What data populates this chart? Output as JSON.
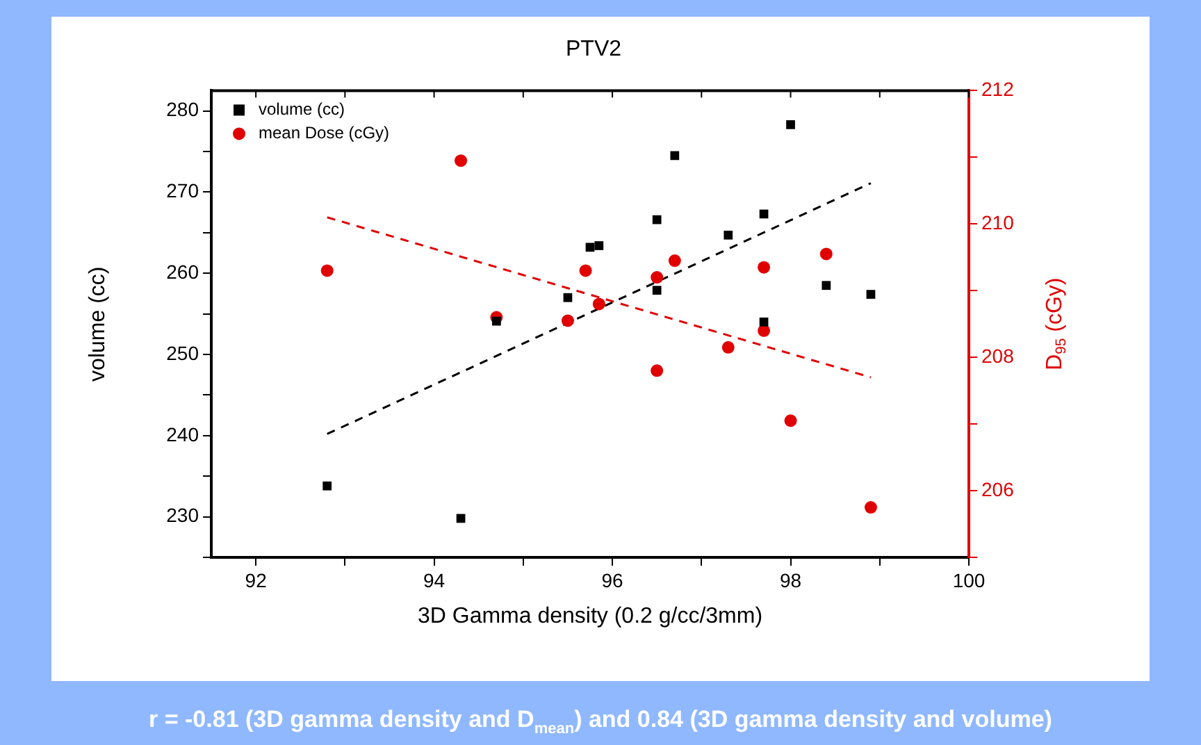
{
  "chart_data": {
    "type": "scatter",
    "title": "PTV2",
    "xlabel": "3D Gamma density (0.2 g/cc/3mm)",
    "ylabel": "volume (cc)",
    "y2label": "D$_{95}$ (cGy)",
    "xlim": [
      91.5,
      100
    ],
    "xticks": [
      92,
      {
        "value": 93,
        "label": null
      },
      94,
      {
        "value": 95,
        "label": null
      },
      96,
      {
        "value": 97,
        "label": null
      },
      98,
      {
        "value": 99,
        "label": null
      },
      100
    ],
    "ylim": [
      225,
      282.5
    ],
    "yticks": [
      {
        "value": 225,
        "label": null
      },
      230,
      {
        "value": 235,
        "label": null
      },
      240,
      {
        "value": 245,
        "label": null
      },
      250,
      {
        "value": 255,
        "label": null
      },
      260,
      {
        "value": 265,
        "label": null
      },
      270,
      {
        "value": 275,
        "label": null
      },
      280
    ],
    "y2lim": [
      205,
      212
    ],
    "y2ticks": [
      {
        "value": 205,
        "label": null
      },
      206,
      {
        "value": 207,
        "label": null
      },
      208,
      {
        "value": 209,
        "label": null
      },
      210,
      {
        "value": 211,
        "label": null
      },
      212
    ],
    "legend": "top left",
    "grid": false,
    "series": [
      {
        "name": "volume (cc)",
        "color": "#000000",
        "marker": "square",
        "x": [
          92.8,
          94.3,
          94.7,
          95.5,
          95.75,
          95.85,
          96.5,
          96.5,
          96.7,
          97.3,
          97.7,
          97.7,
          98.0,
          98.4,
          98.9
        ],
        "values": [
          233.8,
          229.8,
          254.1,
          257.0,
          263.2,
          263.4,
          266.6,
          257.9,
          274.5,
          264.7,
          267.3,
          254.0,
          278.3,
          258.5,
          257.4
        ]
      },
      {
        "name": "mean Dose (cGy)",
        "color": "#e00000",
        "marker": "circle",
        "axis": "y2",
        "x": [
          92.8,
          94.3,
          94.7,
          95.5,
          95.7,
          95.85,
          96.5,
          96.7,
          96.5,
          97.3,
          97.7,
          97.7,
          98.0,
          98.4,
          98.9
        ],
        "values": [
          209.3,
          210.95,
          208.6,
          208.55,
          209.3,
          208.8,
          209.2,
          209.45,
          207.8,
          208.15,
          209.35,
          208.4,
          207.05,
          209.55,
          205.75
        ]
      },
      {
        "type": "line",
        "color": "#000000",
        "line_style": "dashed",
        "marker": "none",
        "x": [
          92.8,
          98.9
        ],
        "values": [
          240.2,
          271.1
        ]
      },
      {
        "type": "line",
        "color": "#e00000",
        "line_style": "dashed",
        "marker": "none",
        "axis": "y2",
        "x": [
          92.8,
          98.9
        ],
        "values": [
          210.1,
          207.7
        ]
      }
    ],
    "annotations": [
      "r = -0.81 (3D gamma density and D$_{mean}$)  and 0.84 (3D gamma density and volume)"
    ]
  }
}
